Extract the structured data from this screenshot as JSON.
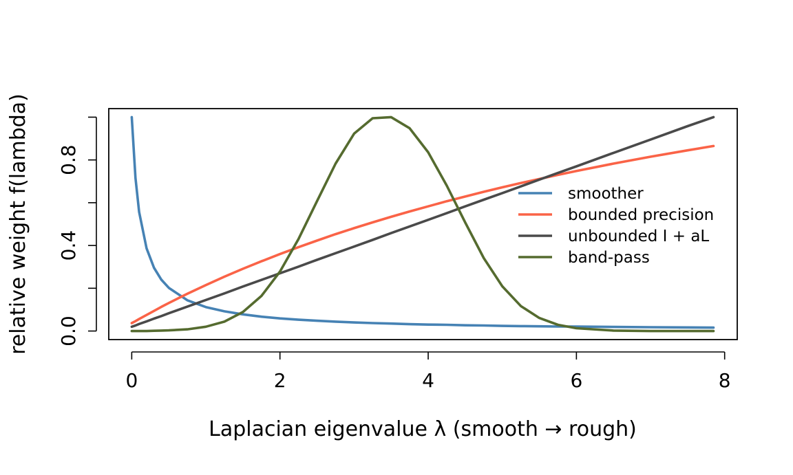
{
  "chart_data": {
    "type": "line",
    "title": "",
    "xlabel": "Laplacian eigenvalue  λ   (smooth → rough)",
    "ylabel": "relative weight f(lambda)",
    "xlim": [
      -0.31,
      8.17
    ],
    "ylim": [
      -0.04,
      1.04
    ],
    "x_ticks": [
      0,
      2,
      4,
      6,
      8
    ],
    "x_tick_labels": [
      "0",
      "2",
      "4",
      "6",
      "8"
    ],
    "y_ticks": [
      0.0,
      0.2,
      0.4,
      0.6,
      0.8,
      1.0
    ],
    "y_tick_labels": [
      "0.0",
      "",
      "0.4",
      "",
      "0.8",
      ""
    ],
    "grid": false,
    "legend_position": "right",
    "x": [
      0,
      0.05,
      0.1,
      0.2,
      0.3,
      0.4,
      0.5,
      0.75,
      1.0,
      1.25,
      1.5,
      1.75,
      2.0,
      2.25,
      2.5,
      2.75,
      3.0,
      3.25,
      3.5,
      3.75,
      4.0,
      4.25,
      4.5,
      4.75,
      5.0,
      5.25,
      5.5,
      5.75,
      6.0,
      6.5,
      7.0,
      7.5,
      7.85
    ],
    "series": [
      {
        "name": "smoother",
        "color": "#4682b4",
        "values": [
          1.0,
          0.716,
          0.557,
          0.387,
          0.296,
          0.24,
          0.202,
          0.144,
          0.112,
          0.092,
          0.078,
          0.067,
          0.059,
          0.053,
          0.048,
          0.044,
          0.04,
          0.037,
          0.035,
          0.032,
          0.03,
          0.029,
          0.027,
          0.026,
          0.024,
          0.023,
          0.022,
          0.021,
          0.021,
          0.019,
          0.018,
          0.017,
          0.016
        ]
      },
      {
        "name": "bounded precision",
        "color": "#fa6347",
        "values": [
          0.037,
          0.046,
          0.056,
          0.075,
          0.094,
          0.113,
          0.131,
          0.174,
          0.215,
          0.254,
          0.291,
          0.326,
          0.36,
          0.392,
          0.423,
          0.453,
          0.481,
          0.508,
          0.534,
          0.559,
          0.583,
          0.607,
          0.629,
          0.651,
          0.672,
          0.692,
          0.711,
          0.73,
          0.748,
          0.783,
          0.815,
          0.845,
          0.865
        ]
      },
      {
        "name": "unbounded I + aL",
        "color": "#4a4a4a",
        "values": [
          0.02,
          0.026,
          0.033,
          0.045,
          0.058,
          0.07,
          0.083,
          0.114,
          0.145,
          0.176,
          0.208,
          0.239,
          0.27,
          0.301,
          0.333,
          0.364,
          0.395,
          0.426,
          0.458,
          0.489,
          0.52,
          0.551,
          0.583,
          0.614,
          0.645,
          0.676,
          0.708,
          0.739,
          0.77,
          0.833,
          0.895,
          0.958,
          1.0
        ]
      },
      {
        "name": "band-pass",
        "color": "#556b2f",
        "values": [
          0.0,
          0.0,
          0.0,
          0.0,
          0.001,
          0.002,
          0.003,
          0.008,
          0.02,
          0.044,
          0.089,
          0.164,
          0.278,
          0.43,
          0.607,
          0.783,
          0.923,
          0.995,
          1.0,
          0.948,
          0.836,
          0.68,
          0.507,
          0.341,
          0.209,
          0.117,
          0.061,
          0.029,
          0.013,
          0.002,
          0.0,
          0.0,
          0.0
        ]
      }
    ]
  }
}
